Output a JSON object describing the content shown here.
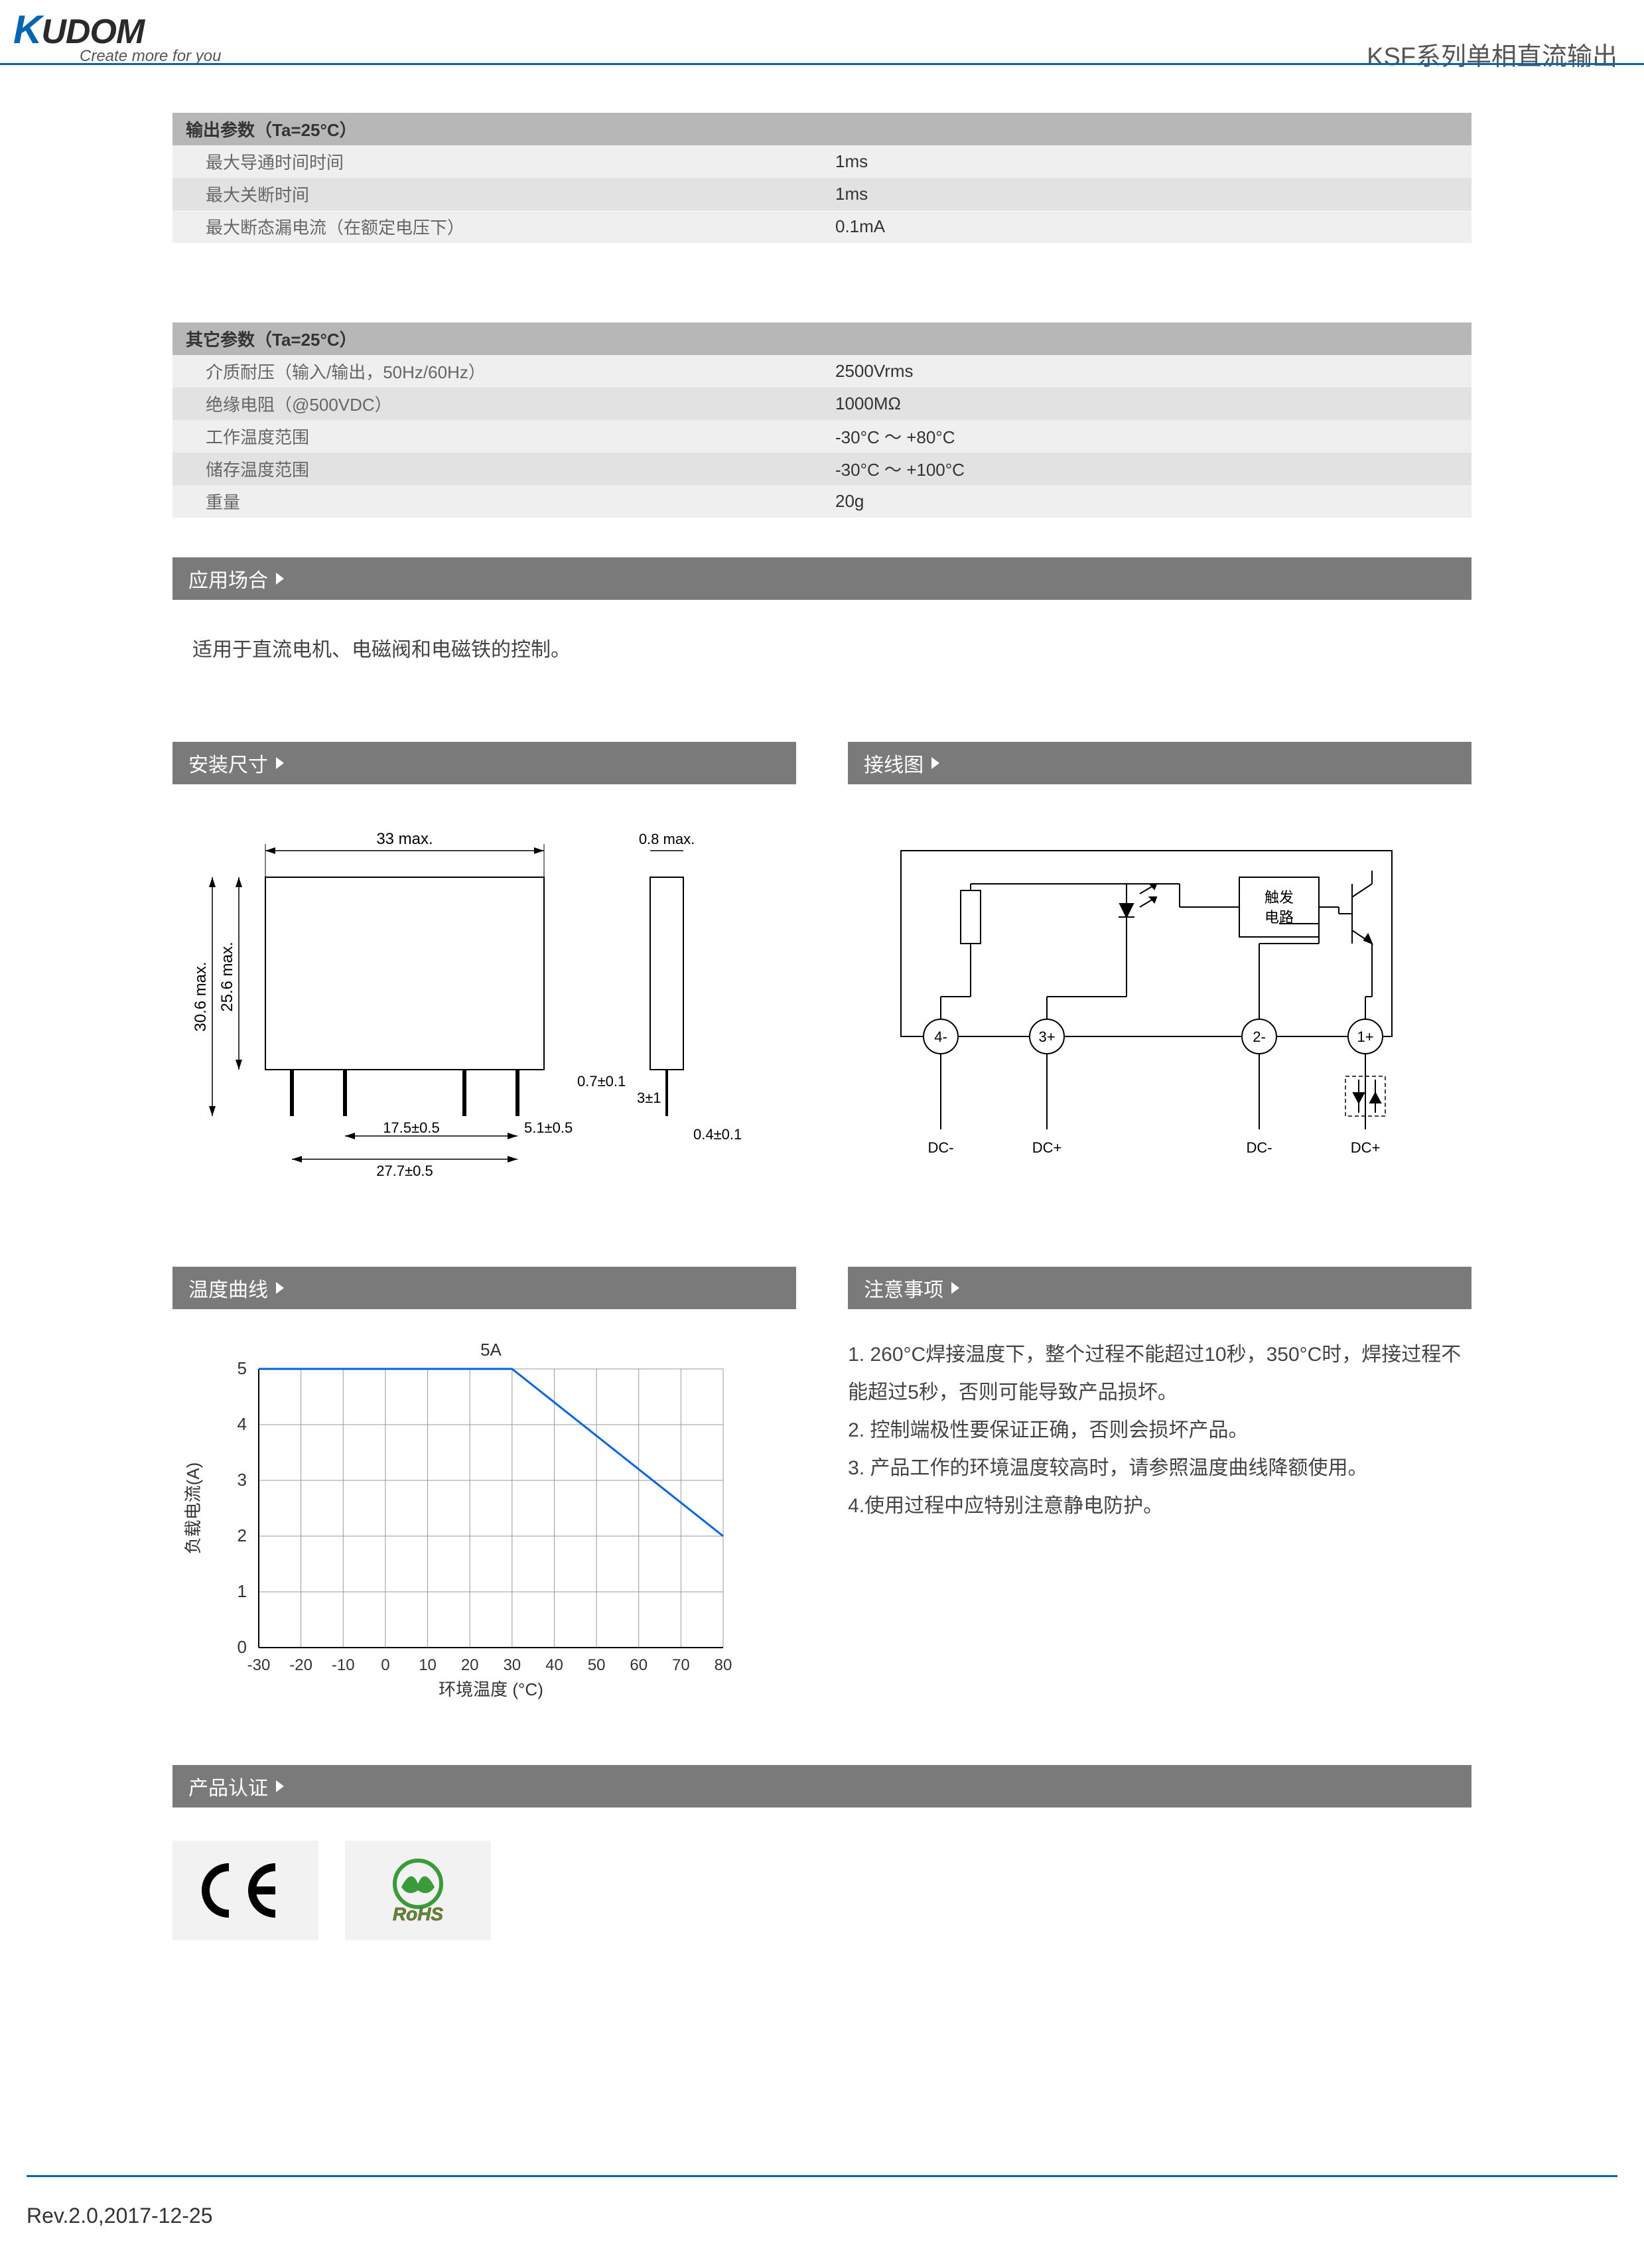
{
  "header": {
    "logo_main": "UDOM",
    "tagline": "Create more for you",
    "series_title": "KSF系列单相直流输出"
  },
  "output_params": {
    "title": "输出参数（Ta=25°C）",
    "rows": [
      {
        "label": "最大导通时间时间",
        "value": "1ms"
      },
      {
        "label": "最大关断时间",
        "value": "1ms"
      },
      {
        "label": "最大断态漏电流（在额定电压下）",
        "value": "0.1mA"
      }
    ]
  },
  "other_params": {
    "title": "其它参数（Ta=25°C）",
    "rows": [
      {
        "label": "介质耐压（输入/输出，50Hz/60Hz）",
        "value": "2500Vrms"
      },
      {
        "label": "绝缘电阻（@500VDC）",
        "value": "1000MΩ"
      },
      {
        "label": "工作温度范围",
        "value": "-30°C ～ +80°C"
      },
      {
        "label": "储存温度范围",
        "value": "-30°C ～ +100°C"
      },
      {
        "label": "重量",
        "value": "20g"
      }
    ]
  },
  "sections": {
    "application": "应用场合",
    "dimensions": "安装尺寸",
    "wiring": "接线图",
    "temp_curve": "温度曲线",
    "notes": "注意事项",
    "certification": "产品认证"
  },
  "application_text": "适用于直流电机、电磁阀和电磁铁的控制。",
  "dimensions": {
    "w_max": "33 max.",
    "t_max": "0.8 max.",
    "h1": "30.6 max.",
    "h2": "25.6 max.",
    "pin1": "0.7±0.1",
    "pin2": "3±1",
    "pitch1": "17.5±0.5",
    "pitch2": "5.1±0.5",
    "pitch3": "27.7±0.5",
    "pin3": "0.4±0.1"
  },
  "wiring": {
    "trigger_label": "触发\n电路",
    "t4": "4-",
    "t3": "3+",
    "t2": "2-",
    "t1": "1+",
    "dc_neg": "DC-",
    "dc_pos": "DC+"
  },
  "temp_chart": {
    "type": "line",
    "title": "5A",
    "ylabel": "负载电流(A)",
    "xlabel": "环境温度 (°C)",
    "yticks": [
      0,
      1,
      2,
      3,
      4,
      5
    ],
    "xticks": [
      -30,
      -20,
      -10,
      0,
      10,
      20,
      30,
      40,
      50,
      60,
      70,
      80
    ],
    "line_points": [
      [
        -30,
        5
      ],
      [
        30,
        5
      ],
      [
        80,
        2
      ]
    ],
    "line_color": "#0066e0",
    "grid_color": "#999999",
    "axis_color": "#000000",
    "background_color": "#ffffff",
    "xlim": [
      -30,
      80
    ],
    "ylim": [
      0,
      5
    ]
  },
  "notes": [
    "1. 260°C焊接温度下，整个过程不能超过10秒，350°C时，焊接过程不能超过5秒，否则可能导致产品损坏。",
    "2. 控制端极性要保证正确，否则会损坏产品。",
    "3. 产品工作的环境温度较高时，请参照温度曲线降额使用。",
    "4.使用过程中应特别注意静电防护。"
  ],
  "certs": {
    "ce": "CE",
    "rohs": "RoHS"
  },
  "footer": {
    "rev": "Rev.2.0,2017-12-25"
  }
}
